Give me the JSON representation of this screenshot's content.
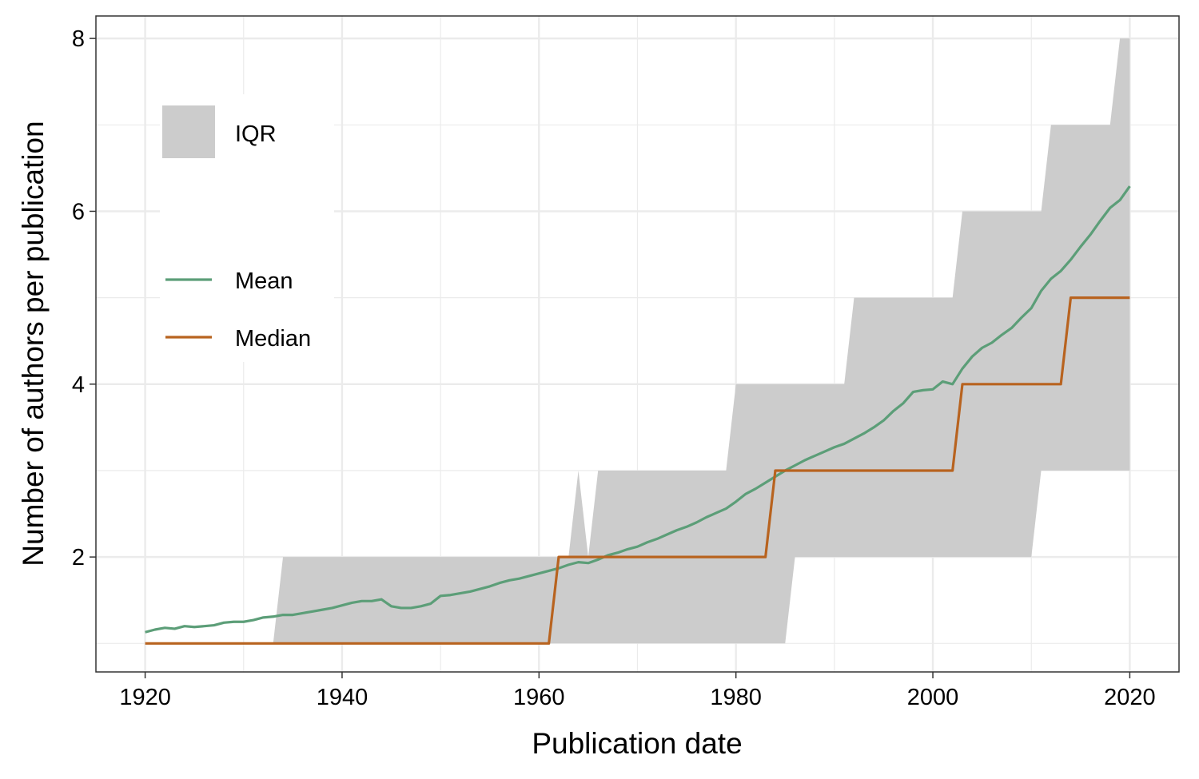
{
  "chart_data": {
    "type": "line",
    "xlabel": "Publication date",
    "ylabel": "Number of authors per publication",
    "xlim": [
      1915,
      2025
    ],
    "ylim": [
      0.67,
      8.26
    ],
    "x_ticks": [
      1920,
      1940,
      1960,
      1980,
      2000,
      2020
    ],
    "x_tick_labels": [
      "1920",
      "1940",
      "1960",
      "1980",
      "2000",
      "2020"
    ],
    "y_ticks": [
      2,
      4,
      6,
      8
    ],
    "y_tick_labels": [
      "2",
      "4",
      "6",
      "8"
    ],
    "grid": true,
    "legend_position": "top-left",
    "legend": [
      {
        "label": "IQR",
        "kind": "fill",
        "color": "#cccccc"
      },
      {
        "label": "Mean",
        "kind": "line",
        "color": "#5c9e78"
      },
      {
        "label": "Median",
        "kind": "line",
        "color": "#b8631f"
      }
    ],
    "iqr": {
      "name": "IQR",
      "color": "#cccccc",
      "lower": [
        [
          1920,
          1
        ],
        [
          1985,
          1
        ],
        [
          1986,
          2
        ],
        [
          2010,
          2
        ],
        [
          2011,
          3
        ],
        [
          2020,
          3
        ]
      ],
      "upper": [
        [
          1933,
          1
        ],
        [
          1934,
          2
        ],
        [
          1963,
          2
        ],
        [
          1964,
          3
        ],
        [
          1965,
          2
        ],
        [
          1966,
          3
        ],
        [
          1979,
          3
        ],
        [
          1980,
          4
        ],
        [
          1991,
          4
        ],
        [
          1992,
          5
        ],
        [
          2002,
          5
        ],
        [
          2003,
          6
        ],
        [
          2011,
          6
        ],
        [
          2012,
          7
        ],
        [
          2018,
          7
        ],
        [
          2019,
          8
        ],
        [
          2020,
          8
        ]
      ]
    },
    "series": [
      {
        "name": "Mean",
        "color": "#5c9e78",
        "x": [
          1920,
          1921,
          1922,
          1923,
          1924,
          1925,
          1926,
          1927,
          1928,
          1929,
          1930,
          1931,
          1932,
          1933,
          1934,
          1935,
          1936,
          1937,
          1938,
          1939,
          1940,
          1941,
          1942,
          1943,
          1944,
          1945,
          1946,
          1947,
          1948,
          1949,
          1950,
          1951,
          1952,
          1953,
          1954,
          1955,
          1956,
          1957,
          1958,
          1959,
          1960,
          1961,
          1962,
          1963,
          1964,
          1965,
          1966,
          1967,
          1968,
          1969,
          1970,
          1971,
          1972,
          1973,
          1974,
          1975,
          1976,
          1977,
          1978,
          1979,
          1980,
          1981,
          1982,
          1983,
          1984,
          1985,
          1986,
          1987,
          1988,
          1989,
          1990,
          1991,
          1992,
          1993,
          1994,
          1995,
          1996,
          1997,
          1998,
          1999,
          2000,
          2001,
          2002,
          2003,
          2004,
          2005,
          2006,
          2007,
          2008,
          2009,
          2010,
          2011,
          2012,
          2013,
          2014,
          2015,
          2016,
          2017,
          2018,
          2019,
          2020
        ],
        "y": [
          1.13,
          1.16,
          1.18,
          1.17,
          1.2,
          1.19,
          1.2,
          1.21,
          1.24,
          1.25,
          1.25,
          1.27,
          1.3,
          1.31,
          1.33,
          1.33,
          1.35,
          1.37,
          1.39,
          1.41,
          1.44,
          1.47,
          1.49,
          1.49,
          1.51,
          1.43,
          1.41,
          1.41,
          1.43,
          1.46,
          1.55,
          1.56,
          1.58,
          1.6,
          1.63,
          1.66,
          1.7,
          1.73,
          1.75,
          1.78,
          1.81,
          1.84,
          1.87,
          1.91,
          1.94,
          1.93,
          1.97,
          2.02,
          2.05,
          2.09,
          2.12,
          2.17,
          2.21,
          2.26,
          2.31,
          2.35,
          2.4,
          2.46,
          2.51,
          2.56,
          2.64,
          2.73,
          2.79,
          2.86,
          2.93,
          3.0,
          3.06,
          3.12,
          3.17,
          3.22,
          3.27,
          3.31,
          3.37,
          3.43,
          3.5,
          3.58,
          3.69,
          3.78,
          3.91,
          3.93,
          3.94,
          4.03,
          4.0,
          4.18,
          4.32,
          4.42,
          4.48,
          4.57,
          4.65,
          4.77,
          4.88,
          5.08,
          5.22,
          5.31,
          5.44,
          5.59,
          5.73,
          5.89,
          6.04,
          6.13,
          6.29
        ]
      },
      {
        "name": "Median",
        "color": "#b8631f",
        "step_points": [
          [
            1920,
            1
          ],
          [
            1961,
            1
          ],
          [
            1962,
            2
          ],
          [
            1983,
            2
          ],
          [
            1984,
            3
          ],
          [
            2002,
            3
          ],
          [
            2003,
            4
          ],
          [
            2013,
            4
          ],
          [
            2014,
            5
          ],
          [
            2020,
            5
          ]
        ]
      }
    ]
  }
}
